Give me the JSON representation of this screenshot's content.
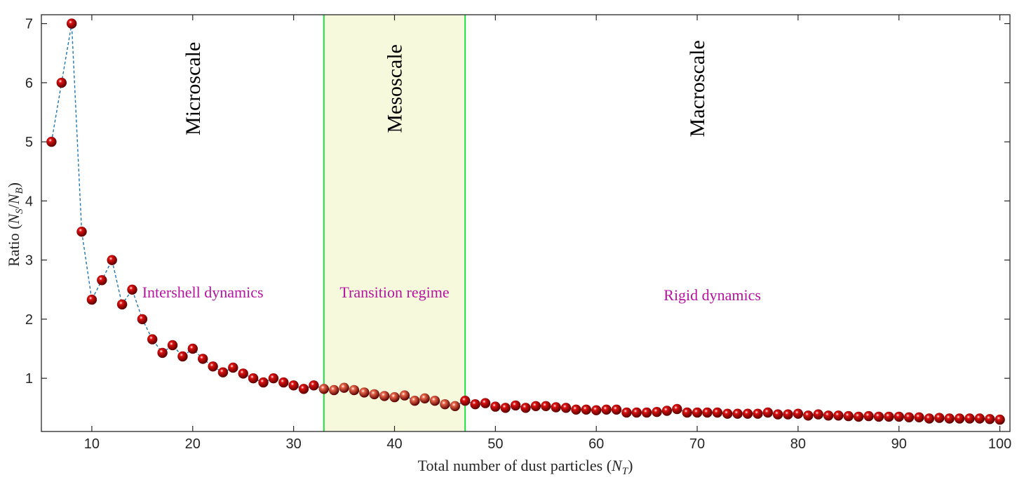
{
  "chart_data": {
    "type": "scatter",
    "title": "",
    "xlabel": "Total number of dust particles (",
    "xlabel_symbol": "N",
    "xlabel_sub": "T",
    "xlabel_end": ")",
    "ylabel": "Ratio (",
    "ylabel_num": "N",
    "ylabel_num_sub": "S",
    "ylabel_slash": "/",
    "ylabel_den": "N",
    "ylabel_den_sub": "B",
    "ylabel_end": ")",
    "xlim": [
      5,
      101
    ],
    "ylim": [
      0.1,
      7.15
    ],
    "xticks": [
      10,
      20,
      30,
      40,
      50,
      60,
      70,
      80,
      90,
      100
    ],
    "yticks": [
      1,
      2,
      3,
      4,
      5,
      6,
      7
    ],
    "grid": false,
    "series": [
      {
        "name": "N_S/N_B",
        "marker_color": "#dd1111",
        "line_color": "#1f77b4",
        "line_style": "dashed",
        "x": [
          6,
          7,
          8,
          9,
          10,
          11,
          12,
          13,
          14,
          15,
          16,
          17,
          18,
          19,
          20,
          21,
          22,
          23,
          24,
          25,
          26,
          27,
          28,
          29,
          30,
          31,
          32,
          33,
          34,
          35,
          36,
          37,
          38,
          39,
          40,
          41,
          42,
          43,
          44,
          45,
          46,
          47,
          48,
          49,
          50,
          51,
          52,
          53,
          54,
          55,
          56,
          57,
          58,
          59,
          60,
          61,
          62,
          63,
          64,
          65,
          66,
          67,
          68,
          69,
          70,
          71,
          72,
          73,
          74,
          75,
          76,
          77,
          78,
          79,
          80,
          81,
          82,
          83,
          84,
          85,
          86,
          87,
          88,
          89,
          90,
          91,
          92,
          93,
          94,
          95,
          96,
          97,
          98,
          99,
          100
        ],
        "y": [
          5.0,
          6.0,
          7.0,
          3.48,
          2.33,
          2.66,
          3.0,
          2.25,
          2.5,
          2.0,
          1.66,
          1.43,
          1.56,
          1.37,
          1.5,
          1.33,
          1.2,
          1.1,
          1.18,
          1.08,
          1.0,
          0.93,
          1.0,
          0.93,
          0.88,
          0.82,
          0.88,
          0.82,
          0.8,
          0.84,
          0.8,
          0.76,
          0.73,
          0.7,
          0.68,
          0.71,
          0.62,
          0.66,
          0.62,
          0.56,
          0.53,
          0.62,
          0.56,
          0.58,
          0.52,
          0.5,
          0.54,
          0.5,
          0.53,
          0.53,
          0.51,
          0.5,
          0.47,
          0.47,
          0.46,
          0.47,
          0.47,
          0.42,
          0.42,
          0.42,
          0.43,
          0.45,
          0.48,
          0.42,
          0.42,
          0.42,
          0.42,
          0.4,
          0.4,
          0.4,
          0.4,
          0.42,
          0.39,
          0.39,
          0.4,
          0.37,
          0.39,
          0.37,
          0.37,
          0.36,
          0.35,
          0.36,
          0.35,
          0.35,
          0.35,
          0.34,
          0.34,
          0.32,
          0.33,
          0.32,
          0.32,
          0.32,
          0.32,
          0.31,
          0.3
        ]
      }
    ],
    "regions": [
      {
        "name": "Mesoscale band",
        "x_start": 33,
        "x_end": 47,
        "fill_color": "#f7f9dc",
        "border_color": "#22dd44"
      }
    ],
    "faded_range": [
      33,
      46
    ],
    "faded_marker_color": "#e8674a",
    "scale_labels": [
      {
        "text": "Microscale",
        "x": 20,
        "y": 5.9
      },
      {
        "text": "Mesoscale",
        "x": 40,
        "y": 5.9
      },
      {
        "text": "Macroscale",
        "x": 70,
        "y": 5.9
      }
    ],
    "regime_labels": [
      {
        "text": "Intershell dynamics",
        "x": 21,
        "y": 2.45
      },
      {
        "text": "Transition regime",
        "x": 40,
        "y": 2.45
      },
      {
        "text": "Rigid dynamics",
        "x": 71.5,
        "y": 2.4
      }
    ],
    "annotation_color": "#b5149f"
  }
}
